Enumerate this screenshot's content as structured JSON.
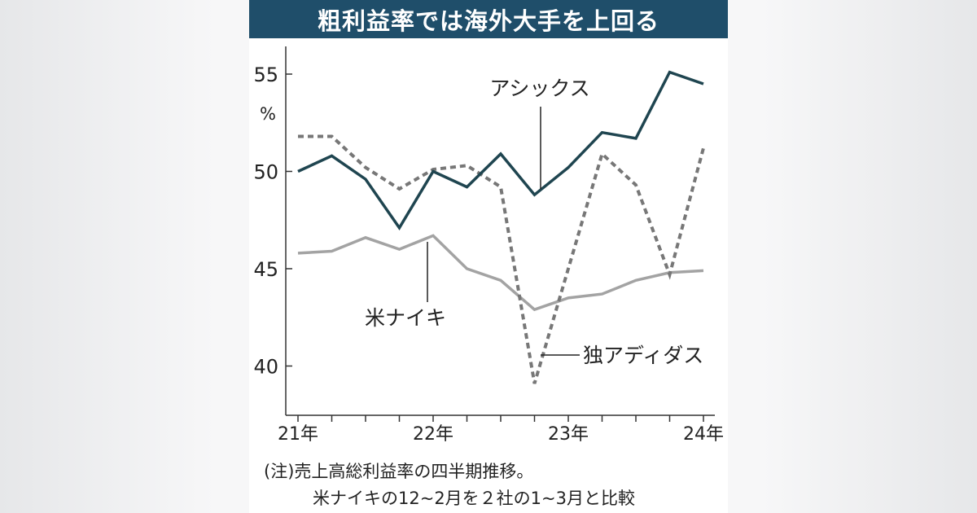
{
  "chart_data": {
    "type": "line",
    "title": "粗利益率では海外大手を上回る",
    "unit_label": "%",
    "ylim": [
      37,
      56.5
    ],
    "yticks": [
      40,
      45,
      50,
      55
    ],
    "x": [
      "21Q1",
      "21Q2",
      "21Q3",
      "21Q4",
      "22Q1",
      "22Q2",
      "22Q3",
      "22Q4",
      "23Q1",
      "23Q2",
      "23Q3",
      "23Q4",
      "24Q1"
    ],
    "xtick_labels": [
      {
        "index": 0,
        "label": "21年"
      },
      {
        "index": 4,
        "label": "22年"
      },
      {
        "index": 8,
        "label": "23年"
      },
      {
        "index": 12,
        "label": "24年"
      }
    ],
    "series": [
      {
        "name": "アシックス",
        "style": "solid",
        "color": "#1f4550",
        "values": [
          50.0,
          50.8,
          49.6,
          47.1,
          50.0,
          49.2,
          50.9,
          48.8,
          50.2,
          52.0,
          51.7,
          55.1,
          54.5
        ]
      },
      {
        "name": "独アディダス",
        "style": "dashed",
        "color": "#777777",
        "values": [
          51.8,
          51.8,
          50.2,
          49.1,
          50.1,
          50.3,
          49.2,
          39.1,
          null,
          50.9,
          49.3,
          44.7,
          51.2
        ]
      },
      {
        "name": "米ナイキ",
        "style": "solid",
        "color": "#a3a3a3",
        "values": [
          45.8,
          45.9,
          46.6,
          46.0,
          46.7,
          45.0,
          44.4,
          42.9,
          43.5,
          43.7,
          44.4,
          44.8,
          44.9
        ]
      }
    ],
    "notes": [
      "(注)売上高総利益率の四半期推移。",
      "米ナイキの12~2月を２社の1~3月と比較"
    ]
  }
}
